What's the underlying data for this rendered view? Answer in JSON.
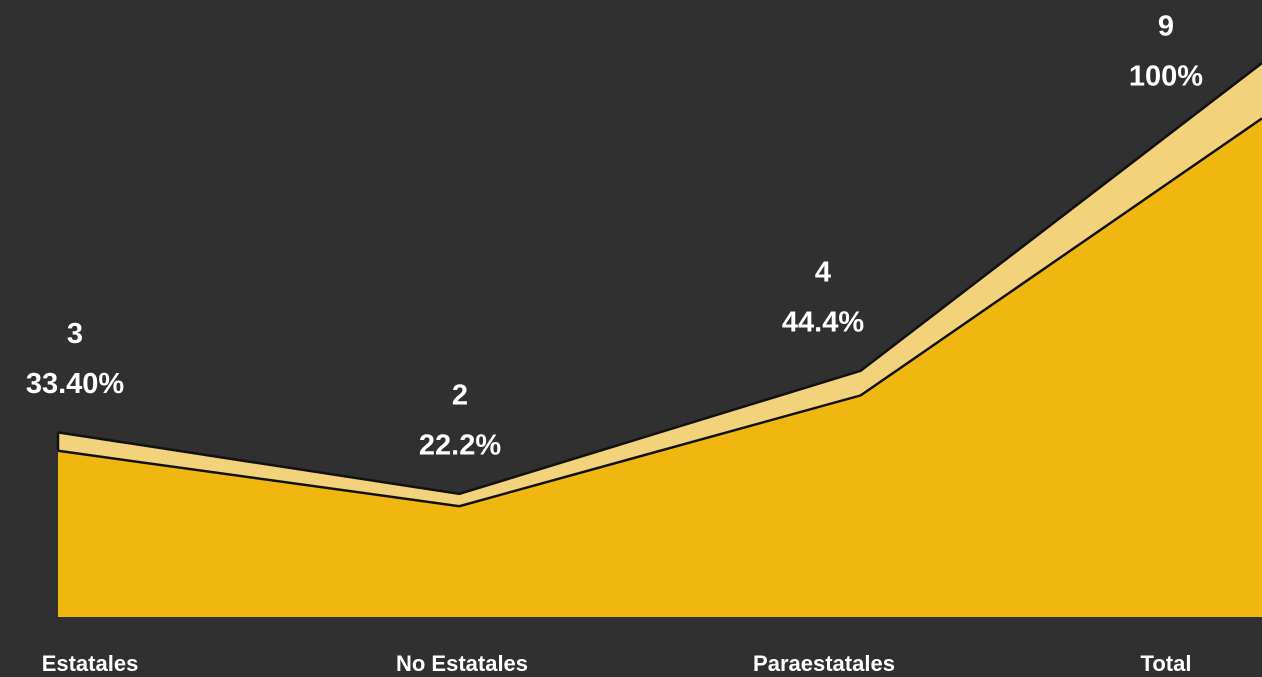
{
  "chart_data": {
    "type": "area",
    "categories": [
      "Estatales",
      "No Estatales",
      "Paraestatales",
      "Total"
    ],
    "values": [
      3,
      2,
      4,
      9
    ],
    "shares": [
      33.4,
      22.2,
      44.4,
      100
    ],
    "share_labels": [
      "33.40%",
      "22.2%",
      "44.4%",
      "100%"
    ],
    "color": "#f1b711",
    "band_color": "#f3d27c"
  }
}
